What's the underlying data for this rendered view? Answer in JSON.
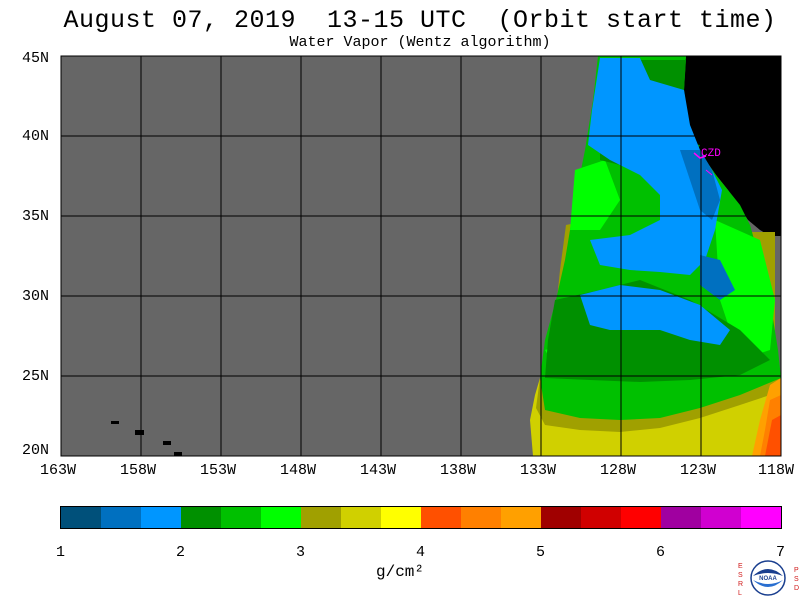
{
  "title": "August 07, 2019  13-15 UTC  (Orbit start time)",
  "subtitle": "Water Vapor (Wentz algorithm)",
  "map": {
    "lat_labels": [
      "45N",
      "40N",
      "35N",
      "30N",
      "25N",
      "20N"
    ],
    "lon_labels": [
      "163W",
      "158W",
      "153W",
      "148W",
      "143W",
      "138W",
      "133W",
      "128W",
      "123W",
      "118W"
    ],
    "station_label": "CZD",
    "colors": {
      "no_data": "#666666",
      "land": "#000000",
      "grid": "#000000",
      "station": "#ff00ff"
    }
  },
  "colorbar": {
    "ticks": [
      "1",
      "2",
      "3",
      "4",
      "5",
      "6",
      "7"
    ],
    "unit_label": "g/cm²",
    "colors": [
      "#00507a",
      "#0070c0",
      "#0096ff",
      "#009000",
      "#00c000",
      "#00ff00",
      "#a0a000",
      "#d0d000",
      "#ffff00",
      "#ff5000",
      "#ff8000",
      "#ffa000",
      "#a00000",
      "#d00000",
      "#ff0000",
      "#a000a0",
      "#d000d0",
      "#ff00ff"
    ]
  },
  "logo": {
    "left_letters": "ESRL",
    "right_letters": "PSD",
    "center": "NOAA"
  }
}
